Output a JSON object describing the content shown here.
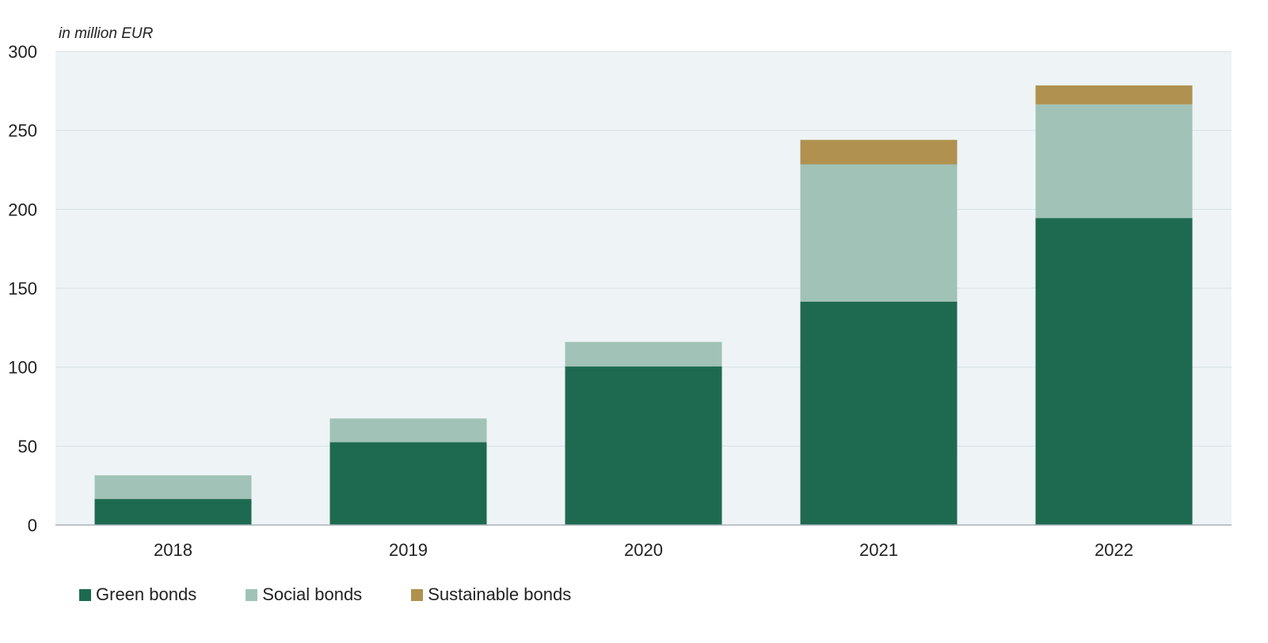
{
  "chart_data": {
    "type": "bar",
    "stacked": true,
    "unit_label": "in million EUR",
    "categories": [
      "2018",
      "2019",
      "2020",
      "2021",
      "2022"
    ],
    "series": [
      {
        "name": "Green bonds",
        "color": "#1e6a50",
        "values": [
          16.5,
          52.5,
          100.5,
          141.5,
          194.5
        ]
      },
      {
        "name": "Social bonds",
        "color": "#a1c2b6",
        "values": [
          15,
          15,
          15.5,
          87,
          72
        ]
      },
      {
        "name": "Sustainable bonds",
        "color": "#b0914f",
        "values": [
          0,
          0,
          0,
          15.5,
          12
        ]
      }
    ],
    "ylim": [
      0,
      300
    ],
    "yticks": [
      "0",
      "50",
      "100",
      "150",
      "200",
      "250",
      "300"
    ],
    "grid": true,
    "legend_position": "bottom-left",
    "plot_background": "#eef4f6"
  }
}
